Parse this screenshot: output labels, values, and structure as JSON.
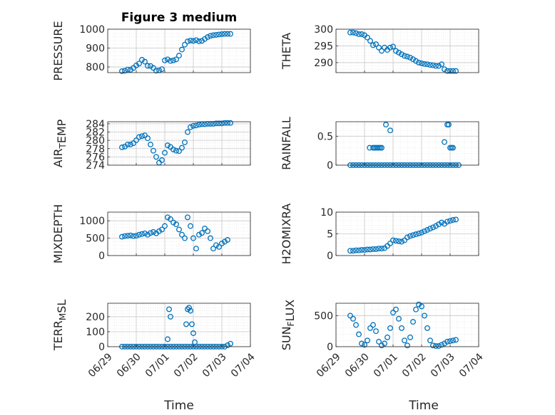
{
  "figure": {
    "title": "Figure 3 medium",
    "xlabel": "Time"
  },
  "colors": {
    "marker": "#0072BD",
    "axis": "#262626",
    "grid": "#c8c8c8"
  },
  "xaxis": {
    "range": [
      0,
      5
    ],
    "ticks": [
      0,
      1,
      2,
      3,
      4,
      5
    ],
    "tick_labels": [
      "06/29",
      "06/30",
      "07/01",
      "07/02",
      "07/03",
      "07/04"
    ]
  },
  "chart_data": [
    {
      "type": "scatter",
      "name": "PRESSURE",
      "ylabel": [
        {
          "t": "PRESSURE"
        }
      ],
      "ylim": [
        770,
        1000
      ],
      "yticks": [
        800,
        900,
        1000
      ],
      "ytick_labels": [
        "800",
        "900",
        "1000"
      ],
      "x": [
        0.5,
        0.6,
        0.7,
        0.8,
        0.9,
        1.0,
        1.1,
        1.2,
        1.3,
        1.4,
        1.5,
        1.6,
        1.7,
        1.8,
        1.9,
        2.0,
        2.1,
        2.2,
        2.3,
        2.4,
        2.5,
        2.6,
        2.7,
        2.8,
        2.9,
        3.0,
        3.1,
        3.2,
        3.3,
        3.4,
        3.5,
        3.6,
        3.7,
        3.8,
        3.9,
        4.0,
        4.1,
        4.2,
        4.3
      ],
      "y": [
        778,
        780,
        786,
        785,
        795,
        808,
        818,
        838,
        828,
        806,
        805,
        795,
        780,
        782,
        788,
        835,
        840,
        832,
        835,
        840,
        860,
        892,
        918,
        935,
        940,
        938,
        942,
        936,
        938,
        948,
        958,
        965,
        968,
        970,
        972,
        974,
        975,
        975,
        975
      ]
    },
    {
      "type": "scatter",
      "name": "THETA",
      "ylabel": [
        {
          "t": "THETA"
        }
      ],
      "ylim": [
        287,
        300
      ],
      "yticks": [
        290,
        295,
        300
      ],
      "ytick_labels": [
        "290",
        "295",
        "300"
      ],
      "x": [
        0.5,
        0.6,
        0.7,
        0.8,
        0.9,
        1.0,
        1.1,
        1.2,
        1.3,
        1.4,
        1.5,
        1.6,
        1.7,
        1.8,
        1.9,
        2.0,
        2.1,
        2.2,
        2.3,
        2.4,
        2.5,
        2.6,
        2.7,
        2.8,
        2.9,
        3.0,
        3.1,
        3.2,
        3.3,
        3.4,
        3.5,
        3.6,
        3.7,
        3.8,
        3.9,
        4.0,
        4.1,
        4.2
      ],
      "y": [
        299,
        299,
        298.8,
        298.5,
        298.5,
        298.2,
        297.5,
        296.5,
        295.2,
        295.5,
        294.5,
        293.5,
        294.5,
        293.8,
        294.5,
        294.8,
        293.5,
        293,
        292.5,
        292,
        291.8,
        291.5,
        291,
        290.5,
        290,
        289.8,
        289.6,
        289.5,
        289.3,
        289.2,
        289,
        289,
        289.5,
        288,
        287.5,
        287.5,
        287.5,
        287.5
      ]
    },
    {
      "type": "scatter",
      "name": "AIR_TEMP",
      "ylabel": [
        {
          "t": "AIR"
        },
        {
          "t": "T",
          "sub": true
        },
        {
          "t": "EMP"
        }
      ],
      "ylim": [
        274,
        284.5
      ],
      "yticks": [
        274,
        276,
        278,
        280,
        282,
        284
      ],
      "ytick_labels": [
        "274",
        "276",
        "278",
        "280",
        "282",
        "284"
      ],
      "x": [
        0.5,
        0.6,
        0.7,
        0.8,
        0.9,
        1.0,
        1.1,
        1.2,
        1.3,
        1.4,
        1.5,
        1.6,
        1.7,
        1.8,
        1.9,
        2.0,
        2.1,
        2.2,
        2.3,
        2.4,
        2.5,
        2.6,
        2.7,
        2.8,
        2.9,
        3.0,
        3.1,
        3.2,
        3.3,
        3.4,
        3.5,
        3.6,
        3.7,
        3.8,
        3.9,
        4.0,
        4.1,
        4.2,
        4.3
      ],
      "y": [
        278.3,
        278.5,
        279,
        279,
        279.3,
        280,
        280.8,
        281,
        281.2,
        280.5,
        279,
        277.5,
        276,
        274.6,
        275.2,
        277,
        278.8,
        278.4,
        277.8,
        277.5,
        277.4,
        278.2,
        279.5,
        282,
        283.2,
        283.5,
        283.6,
        283.8,
        283.9,
        283.9,
        284,
        284,
        284,
        284.1,
        284.1,
        284.1,
        284.2,
        284.2,
        284.2
      ]
    },
    {
      "type": "scatter",
      "name": "RAINFALL",
      "ylabel": [
        {
          "t": "RAINFALL"
        }
      ],
      "ylim": [
        0,
        0.75
      ],
      "yticks": [
        0,
        0.5
      ],
      "ytick_labels": [
        "0",
        "0.5"
      ],
      "x": [
        0.5,
        0.6,
        0.7,
        0.8,
        0.9,
        1.0,
        1.1,
        1.2,
        1.3,
        1.4,
        1.5,
        1.6,
        1.7,
        1.8,
        1.9,
        2.0,
        2.1,
        2.2,
        2.3,
        2.4,
        2.5,
        2.6,
        2.7,
        2.8,
        2.9,
        3.0,
        3.1,
        3.2,
        3.3,
        3.4,
        3.5,
        3.6,
        3.7,
        3.8,
        3.9,
        4.0,
        4.1,
        4.2,
        4.3,
        1.18,
        1.3,
        1.35,
        1.4,
        1.45,
        1.5,
        1.55,
        1.6,
        1.75,
        1.9,
        3.8,
        3.9,
        3.95,
        4.0,
        4.05,
        4.1
      ],
      "y": [
        0,
        0,
        0,
        0,
        0,
        0,
        0,
        0,
        0,
        0,
        0,
        0,
        0,
        0,
        0,
        0,
        0,
        0,
        0,
        0,
        0,
        0,
        0,
        0,
        0,
        0,
        0,
        0,
        0,
        0,
        0,
        0,
        0,
        0,
        0,
        0,
        0,
        0,
        0,
        0.3,
        0.3,
        0.3,
        0.3,
        0.3,
        0.3,
        0.3,
        0.3,
        0.7,
        0.6,
        0.4,
        0.7,
        0.7,
        0.3,
        0.3,
        0.3
      ]
    },
    {
      "type": "scatter",
      "name": "MIXDEPTH",
      "ylabel": [
        {
          "t": "MIXDEPTH"
        }
      ],
      "ylim": [
        0,
        1250
      ],
      "yticks": [
        0,
        500,
        1000
      ],
      "ytick_labels": [
        "0",
        "500",
        "1000"
      ],
      "x": [
        0.5,
        0.6,
        0.7,
        0.8,
        0.9,
        1.0,
        1.1,
        1.2,
        1.3,
        1.4,
        1.5,
        1.6,
        1.7,
        1.8,
        1.9,
        2.0,
        2.1,
        2.2,
        2.3,
        2.4,
        2.5,
        2.6,
        2.7,
        2.8,
        2.9,
        3.0,
        3.1,
        3.2,
        3.3,
        3.4,
        3.5,
        3.6,
        3.7,
        3.8,
        3.9,
        4.0,
        4.1,
        4.2
      ],
      "y": [
        540,
        560,
        570,
        580,
        560,
        570,
        600,
        620,
        640,
        600,
        650,
        680,
        640,
        700,
        750,
        850,
        1100,
        1050,
        950,
        900,
        750,
        600,
        500,
        1100,
        850,
        500,
        200,
        600,
        650,
        780,
        700,
        500,
        200,
        300,
        250,
        350,
        400,
        450
      ]
    },
    {
      "type": "scatter",
      "name": "H2OMIXRA",
      "ylabel": [
        {
          "t": "H2OMIXRA"
        }
      ],
      "ylim": [
        0,
        10
      ],
      "yticks": [
        0,
        5,
        10
      ],
      "ytick_labels": [
        "0",
        "5",
        "10"
      ],
      "x": [
        0.5,
        0.6,
        0.7,
        0.8,
        0.9,
        1.0,
        1.1,
        1.2,
        1.3,
        1.4,
        1.5,
        1.6,
        1.7,
        1.8,
        1.9,
        2.0,
        2.1,
        2.2,
        2.3,
        2.4,
        2.5,
        2.6,
        2.7,
        2.8,
        2.9,
        3.0,
        3.1,
        3.2,
        3.3,
        3.4,
        3.5,
        3.6,
        3.7,
        3.8,
        3.9,
        4.0,
        4.1,
        4.2
      ],
      "y": [
        1.1,
        1.1,
        1.2,
        1.2,
        1.3,
        1.3,
        1.4,
        1.4,
        1.5,
        1.5,
        1.6,
        1.6,
        1.7,
        2.2,
        2.8,
        3.5,
        3.4,
        3.3,
        3.2,
        3.5,
        4.2,
        4.5,
        4.7,
        4.9,
        5.1,
        5.3,
        5.6,
        5.9,
        6.2,
        6.5,
        6.8,
        7.2,
        7.6,
        7.3,
        7.8,
        8.0,
        8.2,
        8.3
      ]
    },
    {
      "type": "scatter",
      "name": "TERR_MSL",
      "ylabel": [
        {
          "t": "TERR"
        },
        {
          "t": "M",
          "sub": true
        },
        {
          "t": "SL"
        }
      ],
      "ylim": [
        0,
        290
      ],
      "yticks": [
        0,
        100,
        200
      ],
      "ytick_labels": [
        "0",
        "100",
        "200"
      ],
      "x": [
        0.5,
        0.6,
        0.7,
        0.8,
        0.9,
        1.0,
        1.1,
        1.2,
        1.3,
        1.4,
        1.5,
        1.6,
        1.7,
        1.8,
        1.9,
        2.0,
        2.1,
        2.2,
        2.3,
        2.4,
        2.5,
        2.6,
        2.7,
        2.8,
        2.9,
        3.0,
        3.1,
        3.2,
        3.3,
        3.4,
        3.5,
        3.6,
        3.7,
        3.8,
        3.9,
        4.0,
        4.1,
        4.2,
        4.3,
        2.75,
        2.8,
        2.85,
        2.9,
        2.95,
        3.0,
        3.05,
        2.1,
        2.15,
        2.2
      ],
      "y": [
        0,
        0,
        0,
        0,
        0,
        0,
        0,
        0,
        0,
        0,
        0,
        0,
        0,
        0,
        0,
        0,
        0,
        0,
        0,
        0,
        0,
        0,
        0,
        0,
        0,
        0,
        0,
        0,
        0,
        0,
        0,
        0,
        0,
        0,
        0,
        0,
        0,
        10,
        20,
        150,
        250,
        260,
        240,
        150,
        90,
        30,
        50,
        250,
        200
      ]
    },
    {
      "type": "scatter",
      "name": "SUN_FLUX",
      "ylabel": [
        {
          "t": "SUN"
        },
        {
          "t": "F",
          "sub": true
        },
        {
          "t": "LUX"
        }
      ],
      "ylim": [
        0,
        700
      ],
      "yticks": [
        0,
        500
      ],
      "ytick_labels": [
        "0",
        "500"
      ],
      "x": [
        0.5,
        0.6,
        0.7,
        0.8,
        0.9,
        1.0,
        1.1,
        1.2,
        1.3,
        1.4,
        1.5,
        1.6,
        1.7,
        1.8,
        1.9,
        2.0,
        2.1,
        2.2,
        2.3,
        2.4,
        2.5,
        2.6,
        2.7,
        2.8,
        2.9,
        3.0,
        3.1,
        3.2,
        3.3,
        3.4,
        3.5,
        3.6,
        3.7,
        3.8,
        3.9,
        4.0,
        4.1,
        4.2
      ],
      "y": [
        500,
        450,
        350,
        200,
        50,
        30,
        100,
        300,
        350,
        250,
        80,
        20,
        50,
        150,
        300,
        550,
        600,
        450,
        300,
        100,
        20,
        150,
        400,
        600,
        680,
        650,
        500,
        300,
        100,
        20,
        10,
        10,
        30,
        50,
        80,
        90,
        100,
        110
      ]
    }
  ]
}
